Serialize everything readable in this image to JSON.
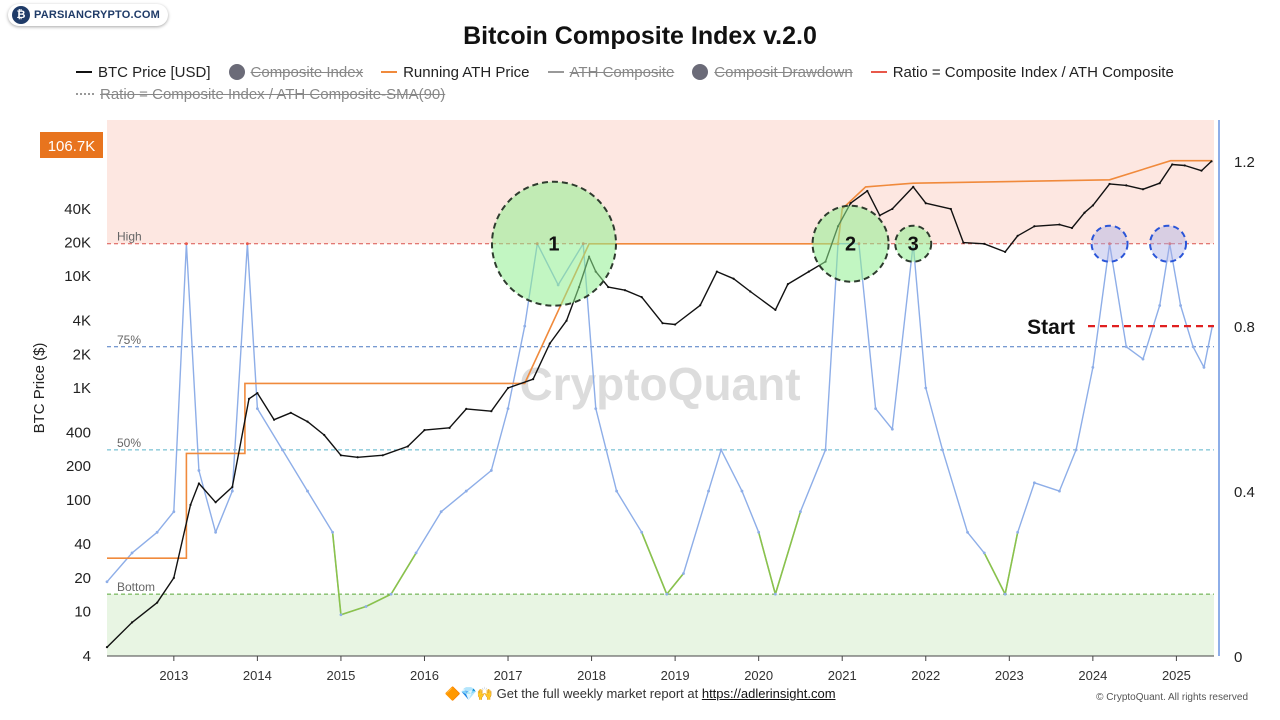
{
  "logo": {
    "text": "PARSIANCRYPTO.COM"
  },
  "title": "Bitcoin Composite Index v.2.0",
  "legend": [
    {
      "label": "BTC Price [USD]",
      "kind": "line",
      "color": "#111111",
      "active": true
    },
    {
      "label": "Composite Index",
      "kind": "dot",
      "color": "#6b6b78",
      "active": false
    },
    {
      "label": "Running ATH Price",
      "kind": "line",
      "color": "#f08a3c",
      "active": true
    },
    {
      "label": "ATH Composite",
      "kind": "line",
      "color": "#999999",
      "active": false
    },
    {
      "label": "Composit Drawdown",
      "kind": "dot",
      "color": "#6b6b78",
      "active": false
    },
    {
      "label": "Ratio = Composite Index / ATH  Composite",
      "kind": "line",
      "color": "#e8584a",
      "active": true
    },
    {
      "label": "Ratio = Composite Index / ATH  Composite-SMA(90)",
      "kind": "dotted",
      "color": "#999999",
      "active": false
    }
  ],
  "watermark": "CryptoQuant",
  "footer": {
    "emoji": "🔶💎🙌",
    "text": "Get the full weekly market report at ",
    "link": "https://adlerinsight.com"
  },
  "copyright": "© CryptoQuant. All rights reserved",
  "chart_data": {
    "type": "line",
    "ylabel": "BTC Price ($)",
    "y_left_scale": "log",
    "y_left_ticks": [
      {
        "label": "4",
        "value": 4
      },
      {
        "label": "10",
        "value": 10
      },
      {
        "label": "20",
        "value": 20
      },
      {
        "label": "40",
        "value": 40
      },
      {
        "label": "100",
        "value": 100
      },
      {
        "label": "200",
        "value": 200
      },
      {
        "label": "400",
        "value": 400
      },
      {
        "label": "1K",
        "value": 1000
      },
      {
        "label": "2K",
        "value": 2000
      },
      {
        "label": "4K",
        "value": 4000
      },
      {
        "label": "10K",
        "value": 10000
      },
      {
        "label": "20K",
        "value": 20000
      },
      {
        "label": "40K",
        "value": 40000
      }
    ],
    "y_right_ticks": [
      {
        "label": "0",
        "value": 0
      },
      {
        "label": "0.4",
        "value": 0.4
      },
      {
        "label": "0.8",
        "value": 0.8
      },
      {
        "label": "1.2",
        "value": 1.2
      }
    ],
    "x_ticks": [
      "2013",
      "2014",
      "2015",
      "2016",
      "2017",
      "2018",
      "2019",
      "2020",
      "2021",
      "2022",
      "2023",
      "2024",
      "2025"
    ],
    "x_range": [
      2012.2,
      2025.45
    ],
    "current_price_label": "106.7K",
    "current_price_color": "#e8741e",
    "zones": {
      "high": {
        "label": "High",
        "value": 1.0,
        "band_color": "#fde7e1",
        "line_color": "#d9534f"
      },
      "p75": {
        "label": "75%",
        "value": 0.75,
        "line_color": "#4a78c2"
      },
      "p50": {
        "label": "50%",
        "value": 0.5,
        "line_color": "#5ab4c9"
      },
      "bottom": {
        "label": "Bottom",
        "value": 0.15,
        "band_color": "#e8f5e3",
        "line_color": "#5aa63a"
      }
    },
    "start_label": "Start",
    "start_value": 0.8,
    "annotations": [
      {
        "label": "1",
        "x": 2017.55,
        "y": 1.0,
        "r": 62,
        "style": "green"
      },
      {
        "label": "2",
        "x": 2021.1,
        "y": 1.0,
        "r": 38,
        "style": "green"
      },
      {
        "label": "3",
        "x": 2021.85,
        "y": 1.0,
        "r": 18,
        "style": "green"
      },
      {
        "label": "",
        "x": 2024.2,
        "y": 1.0,
        "r": 18,
        "style": "blue"
      },
      {
        "label": "",
        "x": 2024.9,
        "y": 1.0,
        "r": 18,
        "style": "blue"
      }
    ],
    "series": [
      {
        "name": "BTC Price [USD]",
        "axis": "left",
        "color": "#111111",
        "points": [
          [
            2012.2,
            4.8
          ],
          [
            2012.5,
            8
          ],
          [
            2012.8,
            12
          ],
          [
            2013.0,
            20
          ],
          [
            2013.2,
            90
          ],
          [
            2013.3,
            140
          ],
          [
            2013.5,
            95
          ],
          [
            2013.7,
            130
          ],
          [
            2013.9,
            800
          ],
          [
            2014.0,
            900
          ],
          [
            2014.2,
            520
          ],
          [
            2014.4,
            600
          ],
          [
            2014.6,
            500
          ],
          [
            2014.8,
            380
          ],
          [
            2015.0,
            250
          ],
          [
            2015.2,
            240
          ],
          [
            2015.5,
            250
          ],
          [
            2015.8,
            300
          ],
          [
            2016.0,
            420
          ],
          [
            2016.3,
            440
          ],
          [
            2016.5,
            650
          ],
          [
            2016.8,
            620
          ],
          [
            2017.0,
            1000
          ],
          [
            2017.3,
            1200
          ],
          [
            2017.5,
            2500
          ],
          [
            2017.7,
            4000
          ],
          [
            2017.85,
            8000
          ],
          [
            2017.97,
            15000
          ],
          [
            2018.05,
            11000
          ],
          [
            2018.2,
            8000
          ],
          [
            2018.4,
            7500
          ],
          [
            2018.6,
            6500
          ],
          [
            2018.85,
            3800
          ],
          [
            2019.0,
            3700
          ],
          [
            2019.3,
            5500
          ],
          [
            2019.5,
            11000
          ],
          [
            2019.7,
            9500
          ],
          [
            2019.9,
            7300
          ],
          [
            2020.2,
            5000
          ],
          [
            2020.35,
            8500
          ],
          [
            2020.6,
            11000
          ],
          [
            2020.8,
            13500
          ],
          [
            2020.95,
            28000
          ],
          [
            2021.1,
            45000
          ],
          [
            2021.3,
            58000
          ],
          [
            2021.45,
            35000
          ],
          [
            2021.6,
            40000
          ],
          [
            2021.85,
            63000
          ],
          [
            2022.0,
            45000
          ],
          [
            2022.3,
            40000
          ],
          [
            2022.45,
            20000
          ],
          [
            2022.7,
            19500
          ],
          [
            2022.95,
            16500
          ],
          [
            2023.1,
            23000
          ],
          [
            2023.3,
            28000
          ],
          [
            2023.6,
            29000
          ],
          [
            2023.75,
            27000
          ],
          [
            2023.9,
            37000
          ],
          [
            2024.0,
            43000
          ],
          [
            2024.2,
            67000
          ],
          [
            2024.4,
            65000
          ],
          [
            2024.6,
            60000
          ],
          [
            2024.8,
            68000
          ],
          [
            2024.95,
            100000
          ],
          [
            2025.1,
            98000
          ],
          [
            2025.3,
            88000
          ],
          [
            2025.42,
            106700
          ]
        ]
      },
      {
        "name": "Running ATH Price",
        "axis": "left",
        "color": "#f08a3c",
        "points": [
          [
            2012.2,
            30
          ],
          [
            2013.15,
            30
          ],
          [
            2013.15,
            260
          ],
          [
            2013.85,
            260
          ],
          [
            2013.85,
            1100
          ],
          [
            2017.2,
            1100
          ],
          [
            2017.97,
            19500
          ],
          [
            2020.95,
            19500
          ],
          [
            2021.0,
            40000
          ],
          [
            2021.28,
            63000
          ],
          [
            2021.85,
            68000
          ],
          [
            2024.2,
            73000
          ],
          [
            2024.93,
            108000
          ],
          [
            2025.05,
            108000
          ],
          [
            2025.43,
            108000
          ]
        ]
      },
      {
        "name": "Ratio = Composite Index / ATH  Composite",
        "axis": "right",
        "color": "#8eaee8",
        "points": [
          [
            2012.2,
            0.18
          ],
          [
            2012.5,
            0.25
          ],
          [
            2012.8,
            0.3
          ],
          [
            2013.0,
            0.35
          ],
          [
            2013.15,
            1.0
          ],
          [
            2013.3,
            0.45
          ],
          [
            2013.5,
            0.3
          ],
          [
            2013.7,
            0.4
          ],
          [
            2013.88,
            1.0
          ],
          [
            2014.0,
            0.6
          ],
          [
            2014.3,
            0.5
          ],
          [
            2014.6,
            0.4
          ],
          [
            2014.9,
            0.3
          ],
          [
            2015.0,
            0.1
          ],
          [
            2015.3,
            0.12
          ],
          [
            2015.6,
            0.15
          ],
          [
            2015.9,
            0.25
          ],
          [
            2016.2,
            0.35
          ],
          [
            2016.5,
            0.4
          ],
          [
            2016.8,
            0.45
          ],
          [
            2017.0,
            0.6
          ],
          [
            2017.2,
            0.8
          ],
          [
            2017.35,
            1.0
          ],
          [
            2017.6,
            0.9
          ],
          [
            2017.9,
            1.0
          ],
          [
            2018.05,
            0.6
          ],
          [
            2018.3,
            0.4
          ],
          [
            2018.6,
            0.3
          ],
          [
            2018.9,
            0.15
          ],
          [
            2019.1,
            0.2
          ],
          [
            2019.4,
            0.4
          ],
          [
            2019.55,
            0.5
          ],
          [
            2019.8,
            0.4
          ],
          [
            2020.0,
            0.3
          ],
          [
            2020.2,
            0.15
          ],
          [
            2020.5,
            0.35
          ],
          [
            2020.8,
            0.5
          ],
          [
            2020.95,
            1.0
          ],
          [
            2021.2,
            1.0
          ],
          [
            2021.4,
            0.6
          ],
          [
            2021.6,
            0.55
          ],
          [
            2021.85,
            1.0
          ],
          [
            2022.0,
            0.65
          ],
          [
            2022.2,
            0.5
          ],
          [
            2022.5,
            0.3
          ],
          [
            2022.7,
            0.25
          ],
          [
            2022.95,
            0.15
          ],
          [
            2023.1,
            0.3
          ],
          [
            2023.3,
            0.42
          ],
          [
            2023.6,
            0.4
          ],
          [
            2023.8,
            0.5
          ],
          [
            2024.0,
            0.7
          ],
          [
            2024.2,
            1.0
          ],
          [
            2024.4,
            0.75
          ],
          [
            2024.6,
            0.72
          ],
          [
            2024.8,
            0.85
          ],
          [
            2024.92,
            1.0
          ],
          [
            2025.05,
            0.85
          ],
          [
            2025.2,
            0.75
          ],
          [
            2025.33,
            0.7
          ],
          [
            2025.43,
            0.8
          ]
        ]
      }
    ]
  }
}
